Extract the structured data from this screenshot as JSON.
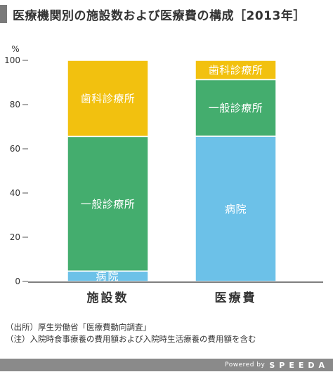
{
  "title": "医療機関別の施設数および医療費の構成［2013年］",
  "notes": [
    "（出所）厚生労働省「医療費動向調査」",
    "（注）入院時食事療養の費用額および入院時生活療養の費用額を含む"
  ],
  "footer": {
    "powered_by": "Powered by",
    "brand": "SPEEDA"
  },
  "colors": {
    "hospital": "#6cc1e8",
    "general_clinic": "#44ad6e",
    "dental_clinic": "#f2c10f",
    "axis": "#555555"
  },
  "chart_data": {
    "type": "bar",
    "stacked": true,
    "unit": "%",
    "ylim": [
      0,
      100
    ],
    "yticks": [
      0,
      20,
      40,
      60,
      80,
      100
    ],
    "categories": [
      "施設数",
      "医療費"
    ],
    "series": [
      {
        "name": "病院",
        "color_key": "hospital",
        "values": [
          4.7,
          65.7
        ]
      },
      {
        "name": "一般診療所",
        "color_key": "general_clinic",
        "values": [
          60.9,
          25.6
        ]
      },
      {
        "name": "歯科診療所",
        "color_key": "dental_clinic",
        "values": [
          34.4,
          8.7
        ]
      }
    ]
  }
}
